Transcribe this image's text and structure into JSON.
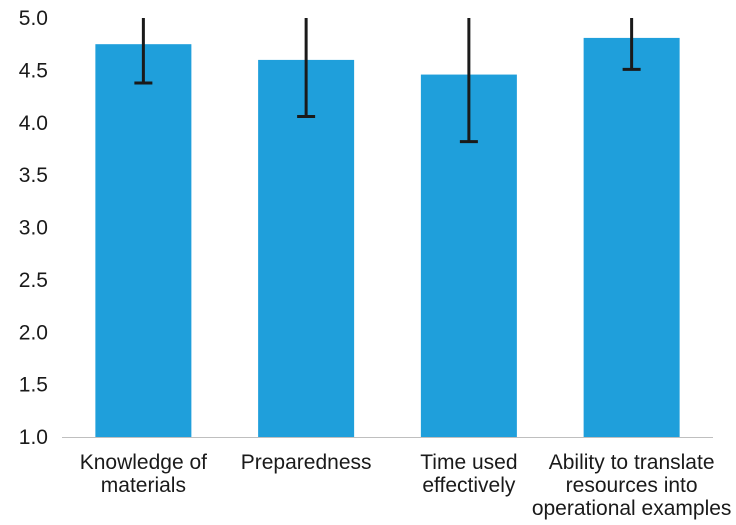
{
  "chart_data": {
    "type": "bar",
    "categories": [
      [
        "Knowledge of",
        "materials"
      ],
      [
        "Preparedness"
      ],
      [
        "Time used",
        "effectively"
      ],
      [
        "Ability to translate",
        "resources into",
        "operational examples"
      ]
    ],
    "values": [
      4.75,
      4.6,
      4.46,
      4.81
    ],
    "error_low": [
      4.38,
      4.06,
      3.82,
      4.51
    ],
    "error_high": [
      5.0,
      5.0,
      5.0,
      5.0
    ],
    "ylim": [
      1.0,
      5.0
    ],
    "yticks": [
      "1.0",
      "1.5",
      "2.0",
      "2.5",
      "3.0",
      "3.5",
      "4.0",
      "4.5",
      "5.0"
    ],
    "title": "",
    "xlabel": "",
    "ylabel": "",
    "grid": false,
    "colors": {
      "bar": "#1f9fdb",
      "error_bar": "#1a1a1a",
      "axis": "#bfbfbf"
    }
  }
}
